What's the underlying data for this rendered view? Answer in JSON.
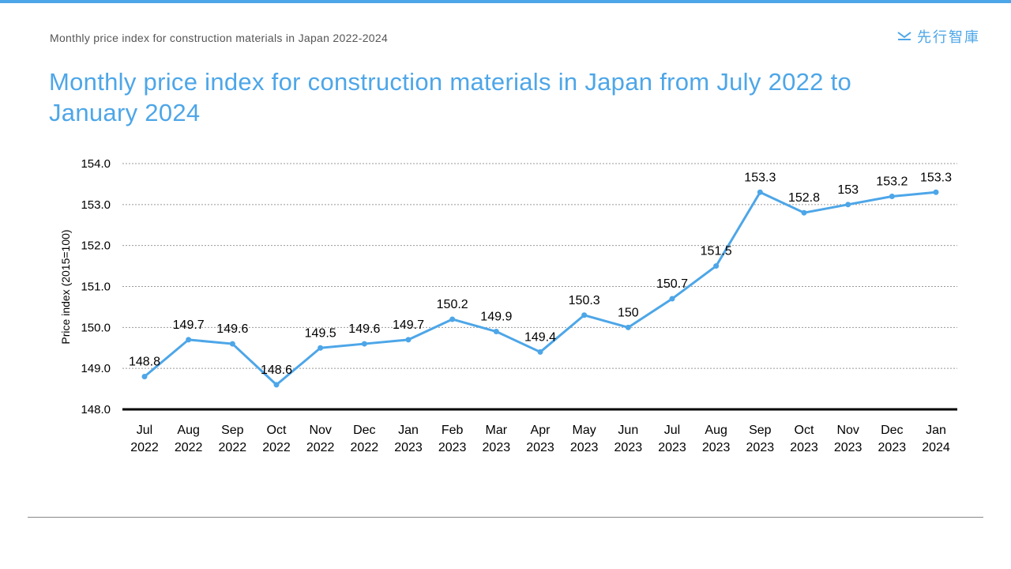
{
  "header": {
    "subtitle": "Monthly price index for construction materials in Japan 2022-2024",
    "title": "Monthly price index for construction materials in Japan from July 2022 to January 2024",
    "logo_text": "先行智庫"
  },
  "colors": {
    "accent": "#4da6e8",
    "line": "#4da6e8",
    "axis": "#000000",
    "grid": "#999999"
  },
  "chart_data": {
    "type": "line",
    "title": "",
    "xlabel": "",
    "ylabel": "Price index (2015=100)",
    "ylim": [
      148,
      154
    ],
    "yticks": [
      "148.0",
      "149.0",
      "150.0",
      "151.0",
      "152.0",
      "153.0",
      "154.0"
    ],
    "grid": true,
    "grid_style": "dotted horizontal",
    "categories": [
      [
        "Jul",
        "2022"
      ],
      [
        "Aug",
        "2022"
      ],
      [
        "Sep",
        "2022"
      ],
      [
        "Oct",
        "2022"
      ],
      [
        "Nov",
        "2022"
      ],
      [
        "Dec",
        "2022"
      ],
      [
        "Jan",
        "2023"
      ],
      [
        "Feb",
        "2023"
      ],
      [
        "Mar",
        "2023"
      ],
      [
        "Apr",
        "2023"
      ],
      [
        "May",
        "2023"
      ],
      [
        "Jun",
        "2023"
      ],
      [
        "Jul",
        "2023"
      ],
      [
        "Aug",
        "2023"
      ],
      [
        "Sep",
        "2023"
      ],
      [
        "Oct",
        "2023"
      ],
      [
        "Nov",
        "2023"
      ],
      [
        "Dec",
        "2023"
      ],
      [
        "Jan",
        "2024"
      ]
    ],
    "values": [
      148.8,
      149.7,
      149.6,
      148.6,
      149.5,
      149.6,
      149.7,
      150.2,
      149.9,
      149.4,
      150.3,
      150,
      150.7,
      151.5,
      153.3,
      152.8,
      153,
      153.2,
      153.3
    ],
    "data_labels": [
      "148.8",
      "149.7",
      "149.6",
      "148.6",
      "149.5",
      "149.6",
      "149.7",
      "150.2",
      "149.9",
      "149.4",
      "150.3",
      "150",
      "150.7",
      "151.5",
      "153.3",
      "152.8",
      "153",
      "153.2",
      "153.3"
    ]
  }
}
